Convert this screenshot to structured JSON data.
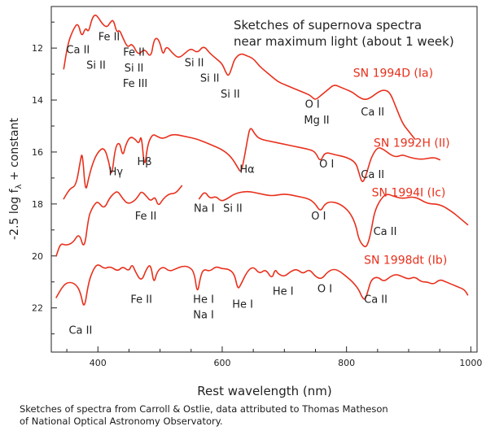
{
  "chart_data": {
    "type": "line",
    "title": "Sketches of supernova spectra",
    "subtitle": "near maximum light (about 1 week)",
    "xlabel": "Rest wavelength (nm)",
    "ylabel": "-2.5 log fλ + constant",
    "ylabel_parts": {
      "pre": "-2.5 log f",
      "sub": "λ",
      "post": " + constant"
    },
    "xlim": [
      325,
      1010
    ],
    "ylim": [
      23.7,
      10.4
    ],
    "y_inverted": true,
    "xticks": [
      400,
      600,
      800,
      1000
    ],
    "yticks": [
      12,
      14,
      16,
      18,
      20,
      22
    ],
    "grid": false,
    "line_color": "#e8301c",
    "series": [
      {
        "name": "SN 1994D (Ia)",
        "x": [
          345,
          352,
          360,
          368,
          374,
          380,
          385,
          390,
          395,
          400,
          408,
          415,
          420,
          425,
          430,
          435,
          440,
          448,
          455,
          465,
          475,
          485,
          490,
          495,
          500,
          505,
          510,
          520,
          530,
          540,
          550,
          560,
          570,
          580,
          590,
          600,
          605,
          610,
          615,
          620,
          630,
          640,
          650,
          660,
          670,
          680,
          690,
          700,
          710,
          720,
          730,
          740,
          745,
          750,
          760,
          770,
          780,
          790,
          800,
          810,
          820,
          830,
          840,
          850,
          860,
          870,
          880,
          890,
          900,
          910
        ],
        "y": [
          12.8,
          11.8,
          11.3,
          11.0,
          11.6,
          11.2,
          11.4,
          10.9,
          10.7,
          10.8,
          11.1,
          11.2,
          11.0,
          10.9,
          11.4,
          11.3,
          11.6,
          12.0,
          11.8,
          12.3,
          12.0,
          12.4,
          11.7,
          11.6,
          11.8,
          12.3,
          11.9,
          12.2,
          12.4,
          12.2,
          12.0,
          12.2,
          11.9,
          12.2,
          12.4,
          12.6,
          12.9,
          13.1,
          12.8,
          12.4,
          12.2,
          12.3,
          12.4,
          12.7,
          12.9,
          13.1,
          13.3,
          13.4,
          13.5,
          13.6,
          13.7,
          13.8,
          13.9,
          14.0,
          13.8,
          13.6,
          13.4,
          13.5,
          13.6,
          13.7,
          13.9,
          14.0,
          13.9,
          13.7,
          13.6,
          13.7,
          14.3,
          14.9,
          15.2,
          15.5
        ],
        "labels": [
          {
            "text": "Ca II",
            "x": 368,
            "y": 12.2
          },
          {
            "text": "Fe II",
            "x": 418,
            "y": 11.7
          },
          {
            "text": "Si II",
            "x": 397,
            "y": 12.8
          },
          {
            "text": "Fe II",
            "x": 458,
            "y": 12.3
          },
          {
            "text": "Si II",
            "x": 458,
            "y": 12.9
          },
          {
            "text": "Fe III",
            "x": 460,
            "y": 13.5
          },
          {
            "text": "Si II",
            "x": 555,
            "y": 12.7
          },
          {
            "text": "Si II",
            "x": 580,
            "y": 13.3
          },
          {
            "text": "Si II",
            "x": 613,
            "y": 13.9
          },
          {
            "text": "O I",
            "x": 745,
            "y": 14.3
          },
          {
            "text": "Mg II",
            "x": 752,
            "y": 14.9
          },
          {
            "text": "Ca II",
            "x": 842,
            "y": 14.6
          },
          {
            "text": "SN 1994D (Ia)",
            "x": 875,
            "y": 13.1
          }
        ]
      },
      {
        "name": "SN 1992H (II)",
        "x": [
          345,
          355,
          365,
          372,
          375,
          380,
          385,
          392,
          400,
          410,
          418,
          422,
          428,
          435,
          440,
          445,
          452,
          460,
          466,
          470,
          475,
          480,
          488,
          495,
          505,
          520,
          540,
          560,
          580,
          600,
          615,
          625,
          630,
          635,
          640,
          645,
          652,
          660,
          680,
          700,
          720,
          740,
          750,
          758,
          765,
          780,
          800,
          815,
          820,
          825,
          830,
          835,
          840,
          850,
          860,
          870,
          880,
          890,
          900,
          920,
          940,
          950
        ],
        "y": [
          17.8,
          17.4,
          17.3,
          16.3,
          16.0,
          17.6,
          17.0,
          16.4,
          16.0,
          15.8,
          16.4,
          17.0,
          15.8,
          15.6,
          16.2,
          15.7,
          15.4,
          15.5,
          15.7,
          15.3,
          16.7,
          15.7,
          15.3,
          15.4,
          15.5,
          15.3,
          15.4,
          15.5,
          15.7,
          15.9,
          16.2,
          16.6,
          16.8,
          16.3,
          15.6,
          15.0,
          15.3,
          15.5,
          15.6,
          15.7,
          15.8,
          15.9,
          16.0,
          16.4,
          16.0,
          16.1,
          16.2,
          16.4,
          16.8,
          17.2,
          17.0,
          16.6,
          16.2,
          15.8,
          15.9,
          16.1,
          16.2,
          16.1,
          16.2,
          16.3,
          16.2,
          16.3
        ],
        "labels": [
          {
            "text": "Hγ",
            "x": 429,
            "y": 16.9
          },
          {
            "text": "Hβ",
            "x": 475,
            "y": 16.5
          },
          {
            "text": "Hα",
            "x": 640,
            "y": 16.8
          },
          {
            "text": "O I",
            "x": 768,
            "y": 16.6
          },
          {
            "text": "Ca II",
            "x": 842,
            "y": 17.0
          },
          {
            "text": "SN 1992H (II)",
            "x": 905,
            "y": 15.8
          }
        ]
      },
      {
        "name": "SN 1994I (Ic)",
        "x": [
          333,
          340,
          348,
          360,
          370,
          378,
          385,
          390,
          395,
          400,
          410,
          418,
          425,
          432,
          440,
          448,
          458,
          465,
          470,
          478,
          485,
          492,
          497,
          505,
          515,
          525,
          535
        ],
        "y": [
          20.0,
          19.5,
          19.6,
          19.5,
          19.1,
          19.8,
          18.5,
          18.2,
          18.0,
          17.9,
          18.2,
          17.8,
          17.6,
          17.5,
          17.8,
          18.0,
          17.9,
          17.7,
          17.5,
          17.7,
          17.9,
          17.7,
          18.1,
          17.8,
          17.6,
          17.6,
          17.3
        ],
        "labels": [
          {
            "text": "Fe II",
            "x": 477,
            "y": 18.6
          },
          {
            "text": "SN 1994I (Ic)",
            "x": 900,
            "y": 17.7
          }
        ]
      },
      {
        "name": "SN 1994I (Ic) red",
        "x": [
          563,
          572,
          580,
          590,
          598,
          608,
          620,
          640,
          660,
          680,
          700,
          720,
          740,
          750,
          758,
          765,
          775,
          790,
          805,
          815,
          820,
          830,
          835,
          840,
          845,
          855,
          865,
          875,
          890,
          910,
          930,
          950,
          970,
          985,
          995
        ],
        "y": [
          17.8,
          17.5,
          17.8,
          17.7,
          17.9,
          17.8,
          17.6,
          17.5,
          17.6,
          17.7,
          17.6,
          17.7,
          17.8,
          18.0,
          18.3,
          18.0,
          17.9,
          18.0,
          18.3,
          18.8,
          19.4,
          19.7,
          19.5,
          19.0,
          18.3,
          17.8,
          17.6,
          17.7,
          17.8,
          17.7,
          18.0,
          18.0,
          18.3,
          18.6,
          18.8
        ],
        "labels": [
          {
            "text": "Na I",
            "x": 571,
            "y": 18.3
          },
          {
            "text": "Si II",
            "x": 617,
            "y": 18.3
          },
          {
            "text": "O I",
            "x": 755,
            "y": 18.6
          },
          {
            "text": "Ca II",
            "x": 862,
            "y": 19.2
          }
        ]
      },
      {
        "name": "SN 1998dt (Ib)",
        "x": [
          333,
          345,
          355,
          365,
          372,
          378,
          385,
          393,
          400,
          410,
          420,
          432,
          440,
          450,
          455,
          460,
          470,
          478,
          485,
          490,
          495,
          505,
          515,
          525,
          535,
          545,
          555,
          560,
          565,
          570,
          580,
          590,
          600,
          610,
          620,
          625,
          630,
          640,
          650,
          660,
          670,
          680,
          685,
          690,
          700,
          710,
          720,
          730,
          740,
          750,
          760,
          770,
          780,
          790,
          800,
          810,
          820,
          825,
          830,
          835,
          840,
          850,
          860,
          870,
          880,
          890,
          900,
          910,
          920,
          930,
          940,
          950,
          960,
          970,
          980,
          990,
          995
        ],
        "y": [
          21.6,
          21.1,
          21.0,
          21.1,
          21.4,
          22.1,
          21.0,
          20.5,
          20.3,
          20.5,
          20.4,
          20.6,
          20.4,
          20.6,
          20.3,
          20.6,
          21.0,
          20.5,
          20.3,
          21.1,
          20.6,
          20.4,
          20.6,
          20.5,
          20.4,
          20.4,
          20.6,
          21.5,
          20.8,
          20.5,
          20.6,
          20.4,
          20.5,
          20.5,
          20.7,
          21.3,
          21.1,
          20.6,
          20.4,
          20.7,
          20.5,
          20.9,
          20.5,
          20.7,
          20.8,
          20.6,
          20.5,
          20.7,
          20.5,
          20.8,
          20.9,
          20.6,
          20.5,
          20.6,
          20.8,
          21.0,
          21.3,
          21.6,
          21.7,
          21.3,
          20.9,
          20.8,
          21.0,
          20.8,
          20.7,
          20.8,
          20.9,
          20.8,
          21.0,
          21.0,
          21.1,
          20.9,
          21.0,
          21.1,
          21.2,
          21.3,
          21.5
        ],
        "labels": [
          {
            "text": "Fe II",
            "x": 470,
            "y": 21.8
          },
          {
            "text": "He I",
            "x": 570,
            "y": 21.8
          },
          {
            "text": "Na I",
            "x": 570,
            "y": 22.4
          },
          {
            "text": "He I",
            "x": 633,
            "y": 22.0
          },
          {
            "text": "He I",
            "x": 698,
            "y": 21.5
          },
          {
            "text": "O I",
            "x": 765,
            "y": 21.4
          },
          {
            "text": "Ca II",
            "x": 847,
            "y": 21.8
          },
          {
            "text": "Ca II",
            "x": 372,
            "y": 23.0
          },
          {
            "text": "SN 1998dt (Ib)",
            "x": 895,
            "y": 20.3
          }
        ]
      }
    ]
  },
  "caption": {
    "line1": "Sketches of spectra from Carroll & Ostlie, data attributed to Thomas Matheson",
    "line2": "of National Optical Astronomy Observatory."
  }
}
